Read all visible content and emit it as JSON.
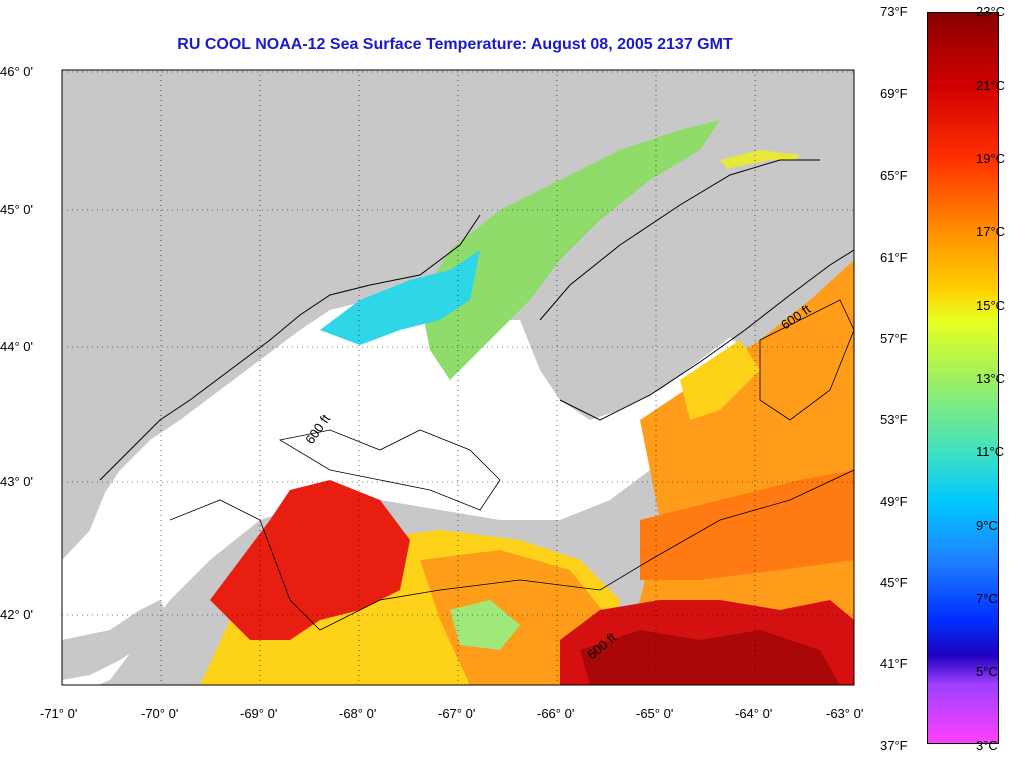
{
  "title": "RU COOL  NOAA-12  Sea Surface Temperature:  August 08, 2005 2137 GMT",
  "lat_ticks": [
    "46° 0'",
    "45° 0'",
    "44° 0'",
    "43° 0'",
    "42° 0'"
  ],
  "lon_ticks": [
    "-71° 0'",
    "-70° 0'",
    "-69° 0'",
    "-68° 0'",
    "-67° 0'",
    "-66° 0'",
    "-65° 0'",
    "-64° 0'",
    "-63° 0'"
  ],
  "contour_label": "600 ft",
  "colorbar": {
    "fahrenheit": [
      "73°F",
      "69°F",
      "65°F",
      "61°F",
      "57°F",
      "53°F",
      "49°F",
      "45°F",
      "41°F",
      "37°F"
    ],
    "celsius": [
      "23°C",
      "21°C",
      "19°C",
      "17°C",
      "15°C",
      "13°C",
      "11°C",
      "9°C",
      "7°C",
      "5°C",
      "3°C"
    ]
  },
  "colors": {
    "land": "#c8c8c8",
    "cloud": "#ffffff",
    "title": "#1a1acc"
  }
}
